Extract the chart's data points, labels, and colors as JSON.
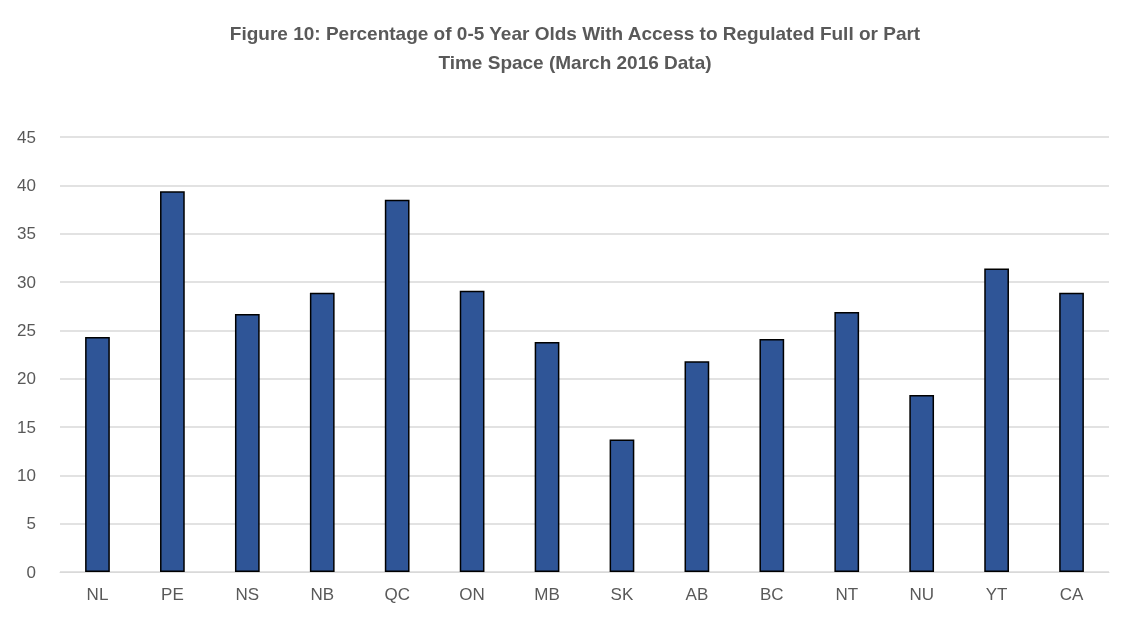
{
  "chart_data": {
    "type": "bar",
    "title": "Figure 10: Percentage of 0-5 Year Olds With Access to Regulated Full or Part\nTime Space (March 2016 Data)",
    "categories": [
      "NL",
      "PE",
      "NS",
      "NB",
      "QC",
      "ON",
      "MB",
      "SK",
      "AB",
      "BC",
      "NT",
      "NU",
      "YT",
      "CA"
    ],
    "values": [
      24.3,
      39.4,
      26.7,
      28.9,
      38.5,
      29.1,
      23.8,
      13.7,
      21.8,
      24.1,
      26.9,
      18.3,
      31.4,
      28.9
    ],
    "color": "#2f5597",
    "ylim": [
      0,
      45
    ],
    "yticks": [
      0,
      5,
      10,
      15,
      20,
      25,
      30,
      35,
      40,
      45
    ],
    "grid": "y"
  }
}
